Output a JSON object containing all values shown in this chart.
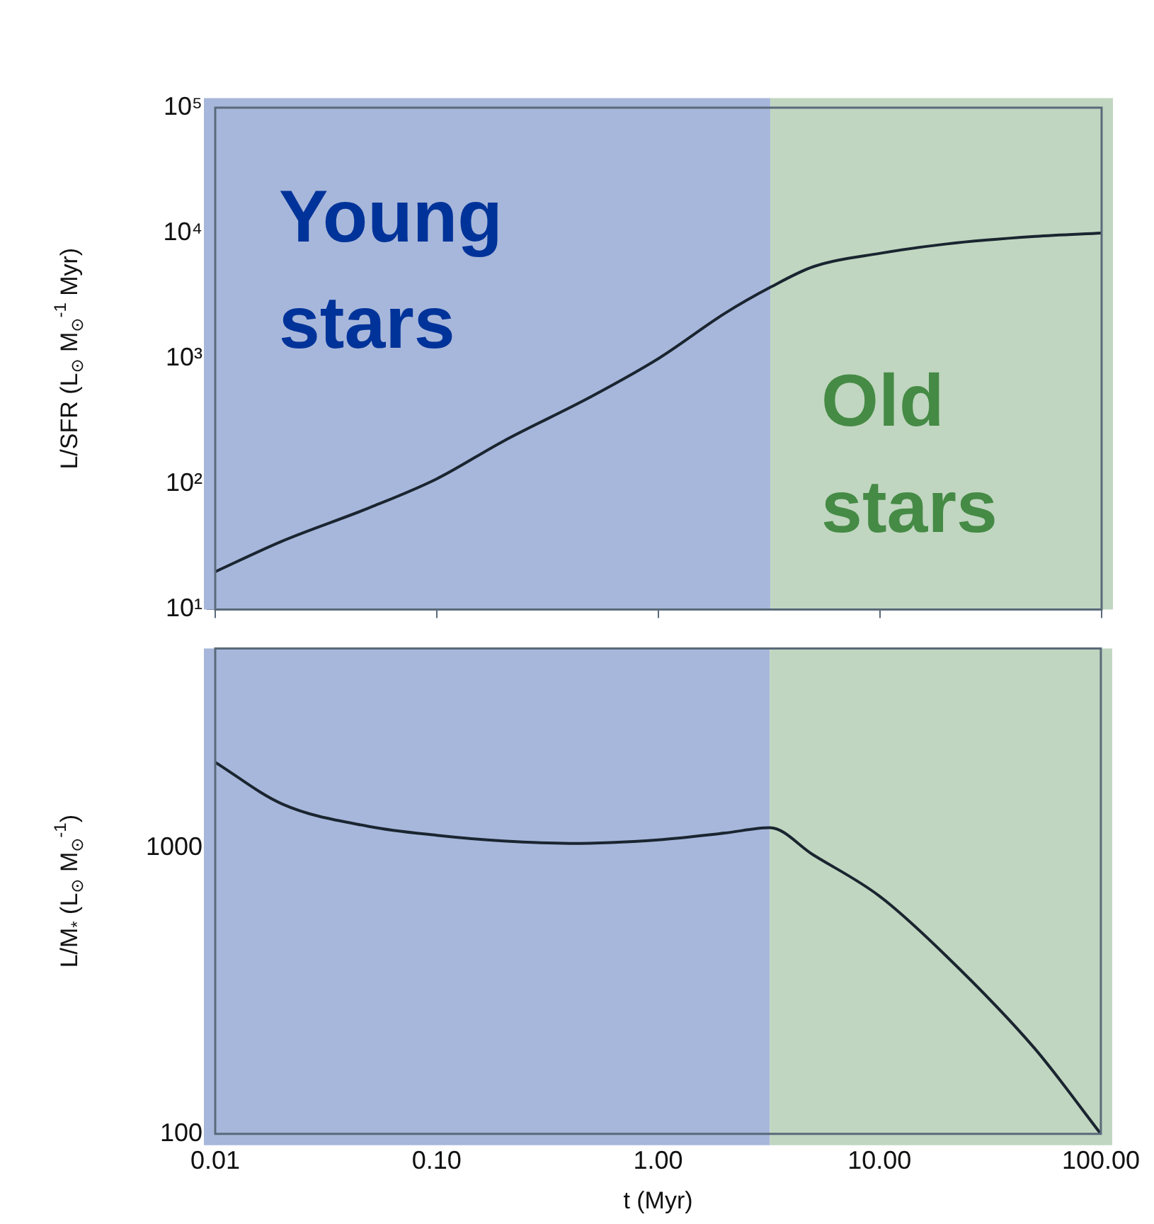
{
  "chart_data": [
    {
      "type": "line",
      "ylabel": "L/SFR (L$_{⊙}$ M$_{⊙}$$^{-1}$ Myr)",
      "log": "xy",
      "tick_labels": "y",
      "legend": false,
      "grid": false,
      "xlim": [
        0.01,
        100
      ],
      "xticks": [
        {
          "value": 0.01,
          "label": null
        },
        {
          "value": 0.1,
          "label": null
        },
        {
          "value": 1,
          "label": null
        },
        {
          "value": 10,
          "label": null
        },
        {
          "value": 100,
          "label": null
        }
      ],
      "ylim": [
        10,
        100000
      ],
      "yticks": [
        {
          "value": 10,
          "label": "10¹"
        },
        {
          "value": 100,
          "label": "10²"
        },
        {
          "value": 1000,
          "label": "10³"
        },
        {
          "value": 10000,
          "label": "10⁴"
        },
        {
          "value": 100000,
          "label": "10⁵"
        }
      ],
      "x": [
        0.01,
        0.02,
        0.05,
        0.1,
        0.2,
        0.5,
        1,
        2,
        3.2,
        5,
        10,
        20,
        50,
        100
      ],
      "values": [
        20,
        35,
        65,
        110,
        220,
        500,
        1000,
        2300,
        3700,
        5400,
        6900,
        8200,
        9400,
        10000
      ],
      "color": "#1a2530",
      "bands": [
        {
          "axis": "x",
          "from": 0.01,
          "to": 3.2,
          "label": "Young stars",
          "color": "#a7b7db"
        },
        {
          "axis": "x",
          "from": 3.2,
          "to": 100,
          "label": "Old stars",
          "color": "#c0d6c0"
        }
      ]
    },
    {
      "type": "line",
      "ylabel": "L/M$_{*}$ (L$_{⊙}$ M$_{⊙}$$^{-1}$)",
      "xlabel": "t (Myr)",
      "log": "xy",
      "legend": false,
      "grid": false,
      "xlim": [
        0.01,
        100
      ],
      "xticks": [
        0.01,
        {
          "value": 0.1,
          "label": "0.10"
        },
        {
          "value": 1,
          "label": "1.00"
        },
        {
          "value": 10,
          "label": "10.00"
        },
        {
          "value": 100,
          "label": "100.00"
        }
      ],
      "ylim": [
        100,
        5000
      ],
      "yticks": [
        100,
        1000
      ],
      "x": [
        0.01,
        0.02,
        0.05,
        0.1,
        0.2,
        0.4,
        1,
        2,
        3.2,
        5,
        10,
        20,
        50,
        100
      ],
      "values": [
        2000,
        1430,
        1190,
        1110,
        1060,
        1040,
        1070,
        1130,
        1180,
        950,
        680,
        420,
        200,
        100
      ],
      "color": "#1a2530",
      "bands": [
        {
          "axis": "x",
          "from": 0.01,
          "to": 3.2,
          "color": "#a7b7db"
        },
        {
          "axis": "x",
          "from": 3.2,
          "to": 100,
          "color": "#c0d6c0"
        }
      ]
    }
  ]
}
